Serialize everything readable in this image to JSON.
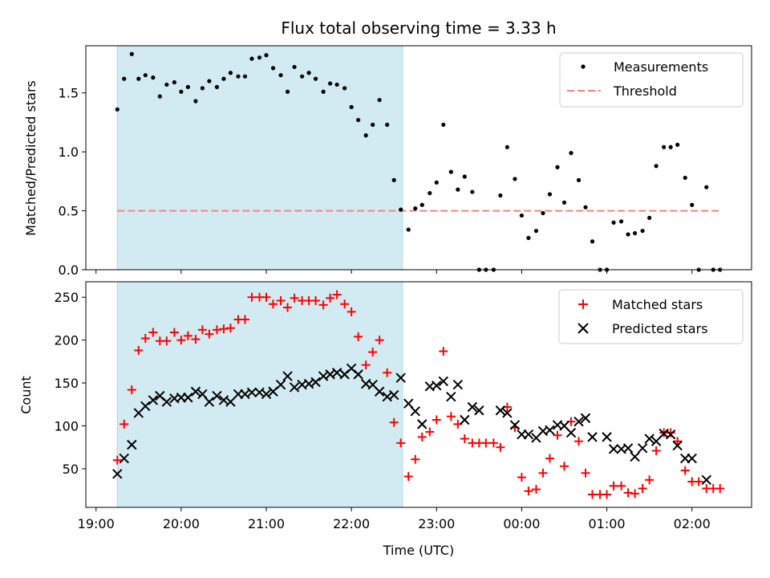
{
  "chart_data": [
    {
      "type": "scatter",
      "title": "Flux total observing time = 3.33 h",
      "ylabel": "Matched/Predicted stars",
      "xlabel": "",
      "x_unit": "hours since 19:00 UTC",
      "xlim": [
        18.88,
        26.7
      ],
      "ylim": [
        0.0,
        1.9
      ],
      "yticks": [
        0.0,
        0.5,
        1.0,
        1.5
      ],
      "ytick_labels": [
        "0.0",
        "0.5",
        "1.0",
        "1.5"
      ],
      "highlight_span": {
        "x0": 19.25,
        "x1": 22.6,
        "color": "#add8e6"
      },
      "legend": {
        "placement": "top-right",
        "entries": [
          "Measurements",
          "Threshold"
        ]
      },
      "threshold": {
        "name": "Threshold",
        "value": 0.5,
        "x0": 19.25,
        "x1": 26.35,
        "color": "#ff7f7f"
      },
      "series": [
        {
          "name": "Measurements",
          "color": "#000000",
          "marker": "dot",
          "x": [
            19.25,
            19.33,
            19.42,
            19.5,
            19.58,
            19.67,
            19.75,
            19.83,
            19.92,
            20.0,
            20.08,
            20.17,
            20.25,
            20.33,
            20.42,
            20.5,
            20.58,
            20.67,
            20.75,
            20.83,
            20.92,
            21.0,
            21.08,
            21.17,
            21.25,
            21.33,
            21.42,
            21.5,
            21.58,
            21.67,
            21.75,
            21.83,
            21.92,
            22.0,
            22.08,
            22.17,
            22.25,
            22.33,
            22.42,
            22.5,
            22.58,
            22.67,
            22.75,
            22.83,
            22.92,
            23.0,
            23.08,
            23.17,
            23.25,
            23.33,
            23.42,
            23.5,
            23.58,
            23.67,
            23.75,
            23.83,
            23.92,
            24.0,
            24.08,
            24.17,
            24.25,
            24.33,
            24.42,
            24.5,
            24.58,
            24.67,
            24.75,
            24.83,
            24.92,
            25.0,
            25.08,
            25.17,
            25.25,
            25.33,
            25.42,
            25.5,
            25.58,
            25.67,
            25.75,
            25.83,
            25.92,
            26.0,
            26.08,
            26.17,
            26.25,
            26.33
          ],
          "y": [
            1.36,
            1.62,
            1.83,
            1.62,
            1.65,
            1.63,
            1.47,
            1.57,
            1.59,
            1.51,
            1.55,
            1.43,
            1.54,
            1.6,
            1.55,
            1.62,
            1.67,
            1.64,
            1.64,
            1.79,
            1.8,
            1.82,
            1.71,
            1.65,
            1.51,
            1.72,
            1.64,
            1.67,
            1.62,
            1.51,
            1.58,
            1.57,
            1.54,
            1.38,
            1.27,
            1.14,
            1.23,
            1.44,
            1.23,
            0.76,
            0.51,
            0.34,
            0.52,
            0.55,
            0.65,
            0.74,
            1.23,
            0.83,
            0.68,
            0.79,
            0.66,
            0.0,
            0.0,
            0.0,
            0.63,
            1.04,
            0.77,
            0.46,
            0.27,
            0.33,
            0.48,
            0.64,
            0.87,
            0.57,
            0.99,
            0.76,
            0.53,
            0.24,
            0.0,
            0.0,
            0.4,
            0.41,
            0.3,
            0.31,
            0.33,
            0.44,
            0.88,
            1.04,
            1.04,
            1.06,
            0.78,
            0.55,
            0.0,
            0.7,
            0.0,
            0.0
          ]
        }
      ]
    },
    {
      "type": "scatter",
      "title": "",
      "ylabel": "Count",
      "xlabel": "Time (UTC)",
      "x_unit": "hours since 19:00 UTC",
      "xlim": [
        18.88,
        26.7
      ],
      "ylim": [
        5,
        268
      ],
      "yticks": [
        50,
        100,
        150,
        200,
        250
      ],
      "ytick_labels": [
        "50",
        "100",
        "150",
        "200",
        "250"
      ],
      "xticks": [
        19,
        20,
        21,
        22,
        23,
        24,
        25,
        26
      ],
      "xtick_labels": [
        "19:00",
        "20:00",
        "21:00",
        "22:00",
        "23:00",
        "00:00",
        "01:00",
        "02:00"
      ],
      "highlight_span": {
        "x0": 19.25,
        "x1": 22.6,
        "color": "#add8e6"
      },
      "legend": {
        "placement": "top-right",
        "entries": [
          "Matched stars",
          "Predicted stars"
        ]
      },
      "series": [
        {
          "name": "Matched stars",
          "color": "#ff0000",
          "marker": "plus",
          "x": [
            19.25,
            19.33,
            19.42,
            19.5,
            19.58,
            19.67,
            19.75,
            19.83,
            19.92,
            20.0,
            20.08,
            20.17,
            20.25,
            20.33,
            20.42,
            20.5,
            20.58,
            20.67,
            20.75,
            20.83,
            20.92,
            21.0,
            21.08,
            21.17,
            21.25,
            21.33,
            21.42,
            21.5,
            21.58,
            21.67,
            21.75,
            21.83,
            21.92,
            22.0,
            22.08,
            22.17,
            22.25,
            22.33,
            22.42,
            22.5,
            22.58,
            22.67,
            22.75,
            22.83,
            22.92,
            23.0,
            23.08,
            23.17,
            23.25,
            23.33,
            23.42,
            23.5,
            23.58,
            23.67,
            23.75,
            23.83,
            23.92,
            24.0,
            24.08,
            24.17,
            24.25,
            24.33,
            24.42,
            24.5,
            24.58,
            24.67,
            24.75,
            24.83,
            24.92,
            25.0,
            25.08,
            25.17,
            25.25,
            25.33,
            25.42,
            25.5,
            25.58,
            25.67,
            25.75,
            25.83,
            25.92,
            26.0,
            26.08,
            26.17,
            26.25,
            26.33
          ],
          "y": [
            60,
            102,
            142,
            188,
            202,
            209,
            199,
            199,
            209,
            200,
            205,
            201,
            212,
            207,
            212,
            213,
            214,
            224,
            224,
            250,
            250,
            250,
            242,
            246,
            238,
            249,
            246,
            246,
            246,
            241,
            249,
            253,
            242,
            233,
            204,
            171,
            186,
            200,
            162,
            104,
            80,
            41,
            61,
            87,
            93,
            107,
            187,
            111,
            102,
            85,
            80,
            80,
            80,
            80,
            75,
            122,
            98,
            40,
            24,
            26,
            45,
            62,
            89,
            53,
            105,
            82,
            45,
            20,
            20,
            20,
            30,
            30,
            22,
            21,
            27,
            37,
            71,
            92,
            92,
            82,
            48,
            35,
            35,
            27,
            27,
            27
          ],
          "labels_shown": false
        },
        {
          "name": "Predicted stars",
          "color": "#000000",
          "marker": "cross",
          "x": [
            19.25,
            19.33,
            19.42,
            19.5,
            19.58,
            19.67,
            19.75,
            19.83,
            19.92,
            20.0,
            20.08,
            20.17,
            20.25,
            20.33,
            20.42,
            20.5,
            20.58,
            20.67,
            20.75,
            20.83,
            20.92,
            21.0,
            21.08,
            21.17,
            21.25,
            21.33,
            21.42,
            21.5,
            21.58,
            21.67,
            21.75,
            21.83,
            21.92,
            22.0,
            22.08,
            22.17,
            22.25,
            22.33,
            22.42,
            22.5,
            22.58,
            22.67,
            22.75,
            22.83,
            22.92,
            23.0,
            23.08,
            23.17,
            23.25,
            23.33,
            23.42,
            23.5,
            23.75,
            23.83,
            23.92,
            24.0,
            24.08,
            24.17,
            24.25,
            24.33,
            24.42,
            24.5,
            24.58,
            24.67,
            24.75,
            24.83,
            25.0,
            25.08,
            25.17,
            25.25,
            25.33,
            25.42,
            25.5,
            25.58,
            25.67,
            25.75,
            25.83,
            25.92,
            26.0,
            26.17
          ],
          "y": [
            44,
            62,
            78,
            115,
            123,
            130,
            135,
            128,
            132,
            133,
            133,
            140,
            137,
            128,
            135,
            130,
            128,
            137,
            137,
            139,
            139,
            137,
            140,
            148,
            158,
            145,
            148,
            149,
            151,
            158,
            160,
            162,
            160,
            167,
            160,
            149,
            148,
            140,
            134,
            136,
            156,
            126,
            117,
            102,
            146,
            147,
            152,
            134,
            148,
            107,
            122,
            118,
            118,
            115,
            101,
            90,
            90,
            86,
            94,
            95,
            101,
            100,
            92,
            105,
            109,
            87,
            87,
            73,
            73,
            74,
            64,
            74,
            85,
            82,
            91,
            90,
            77,
            62,
            62,
            37
          ]
        }
      ]
    }
  ]
}
